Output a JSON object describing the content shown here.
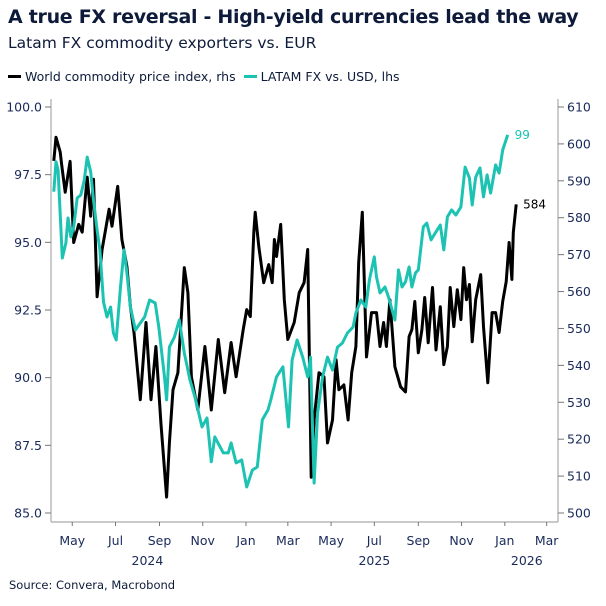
{
  "title": "A true FX reversal - High-yield currencies lead the way",
  "subtitle": "Latam FX commodity exporters vs. EUR",
  "source": "Source: Convera, Macrobond",
  "chart_data": {
    "type": "line",
    "title": "A true FX reversal - High-yield currencies lead the way",
    "subtitle": "Latam FX commodity exporters vs. EUR",
    "legend_position": "top-left",
    "grid": false,
    "xlim": [
      "2024-04-01",
      "2026-03-17"
    ],
    "x_ticks": [
      "May",
      "Jul",
      "Sep",
      "Nov",
      "Jan",
      "Mar",
      "May",
      "Jul",
      "Sep",
      "Nov",
      "Jan",
      "Mar"
    ],
    "x_tick_dates": [
      "2024-05-01",
      "2024-07-01",
      "2024-09-01",
      "2024-11-01",
      "2025-01-01",
      "2025-03-01",
      "2025-05-01",
      "2025-07-01",
      "2025-09-01",
      "2025-11-01",
      "2026-01-01",
      "2026-03-01"
    ],
    "x_years": [
      {
        "label": "2024",
        "date": "2024-08-15"
      },
      {
        "label": "2025",
        "date": "2025-07-01"
      },
      {
        "label": "2026",
        "date": "2026-02-01"
      }
    ],
    "y_left": {
      "lim": [
        85,
        100
      ],
      "ticks": [
        "85.0",
        "87.5",
        "90.0",
        "92.5",
        "95.0",
        "97.5",
        "100.0"
      ]
    },
    "y_right": {
      "lim": [
        500,
        610
      ],
      "ticks": [
        "500",
        "510",
        "520",
        "530",
        "540",
        "550",
        "560",
        "570",
        "580",
        "590",
        "600",
        "610"
      ]
    },
    "series": [
      {
        "name": "World commodity price index, rhs",
        "axis": "right",
        "color": "#000000",
        "end_label": "584",
        "points": [
          [
            "2024-04-05",
            595.4
          ],
          [
            "2024-04-08",
            601.8
          ],
          [
            "2024-04-14",
            597.8
          ],
          [
            "2024-04-16",
            594.5
          ],
          [
            "2024-04-21",
            586.9
          ],
          [
            "2024-04-28",
            595.3
          ],
          [
            "2024-05-03",
            573.3
          ],
          [
            "2024-05-10",
            578.2
          ],
          [
            "2024-05-15",
            576.1
          ],
          [
            "2024-05-22",
            591.0
          ],
          [
            "2024-05-27",
            580.4
          ],
          [
            "2024-05-31",
            590.4
          ],
          [
            "2024-06-05",
            558.6
          ],
          [
            "2024-06-12",
            571.4
          ],
          [
            "2024-06-17",
            576.8
          ],
          [
            "2024-06-22",
            582.3
          ],
          [
            "2024-06-26",
            577.7
          ],
          [
            "2024-07-04",
            588.5
          ],
          [
            "2024-07-10",
            574.1
          ],
          [
            "2024-07-17",
            566.8
          ],
          [
            "2024-07-22",
            555.9
          ],
          [
            "2024-07-27",
            548.9
          ],
          [
            "2024-08-05",
            530.7
          ],
          [
            "2024-08-13",
            551.6
          ],
          [
            "2024-08-20",
            530.7
          ],
          [
            "2024-08-27",
            545.1
          ],
          [
            "2024-09-03",
            524.4
          ],
          [
            "2024-09-11",
            504.3
          ],
          [
            "2024-09-15",
            519.0
          ],
          [
            "2024-09-20",
            533.4
          ],
          [
            "2024-09-27",
            538.0
          ],
          [
            "2024-10-06",
            566.5
          ],
          [
            "2024-10-11",
            559.7
          ],
          [
            "2024-10-16",
            536.9
          ],
          [
            "2024-10-25",
            527.9
          ],
          [
            "2024-11-04",
            545.1
          ],
          [
            "2024-11-13",
            527.9
          ],
          [
            "2024-11-23",
            547.0
          ],
          [
            "2024-12-02",
            532.6
          ],
          [
            "2024-12-11",
            546.2
          ],
          [
            "2024-12-18",
            536.9
          ],
          [
            "2024-12-28",
            549.7
          ],
          [
            "2025-01-02",
            555.1
          ],
          [
            "2025-01-07",
            553.2
          ],
          [
            "2025-01-12",
            576.0
          ],
          [
            "2025-01-14",
            581.5
          ],
          [
            "2025-01-19",
            572.2
          ],
          [
            "2025-01-26",
            562.4
          ],
          [
            "2025-02-02",
            567.3
          ],
          [
            "2025-02-07",
            562.4
          ],
          [
            "2025-02-10",
            574.1
          ],
          [
            "2025-02-13",
            569.5
          ],
          [
            "2025-02-19",
            578.2
          ],
          [
            "2025-02-24",
            557.8
          ],
          [
            "2025-03-01",
            547.0
          ],
          [
            "2025-03-10",
            551.6
          ],
          [
            "2025-03-17",
            559.7
          ],
          [
            "2025-03-24",
            562.4
          ],
          [
            "2025-03-29",
            571.4
          ],
          [
            "2025-04-03",
            509.7
          ],
          [
            "2025-04-07",
            525.2
          ],
          [
            "2025-04-14",
            538.0
          ],
          [
            "2025-04-21",
            536.9
          ],
          [
            "2025-04-26",
            519.0
          ],
          [
            "2025-05-03",
            525.2
          ],
          [
            "2025-05-08",
            541.5
          ],
          [
            "2025-05-12",
            533.4
          ],
          [
            "2025-05-19",
            534.7
          ],
          [
            "2025-05-25",
            525.2
          ],
          [
            "2025-05-30",
            538.0
          ],
          [
            "2025-06-05",
            545.1
          ],
          [
            "2025-06-09",
            567.9
          ],
          [
            "2025-06-14",
            581.5
          ],
          [
            "2025-06-20",
            542.3
          ],
          [
            "2025-06-27",
            554.3
          ],
          [
            "2025-07-04",
            554.3
          ],
          [
            "2025-07-09",
            545.1
          ],
          [
            "2025-07-14",
            551.6
          ],
          [
            "2025-07-18",
            545.1
          ],
          [
            "2025-07-23",
            557.8
          ],
          [
            "2025-07-30",
            539.6
          ],
          [
            "2025-08-07",
            534.2
          ],
          [
            "2025-08-14",
            532.8
          ],
          [
            "2025-08-19",
            547.8
          ],
          [
            "2025-08-23",
            549.7
          ],
          [
            "2025-08-27",
            557.3
          ],
          [
            "2025-09-01",
            543.4
          ],
          [
            "2025-09-06",
            549.7
          ],
          [
            "2025-09-10",
            558.4
          ],
          [
            "2025-09-15",
            546.1
          ],
          [
            "2025-09-21",
            561.1
          ],
          [
            "2025-09-26",
            544.2
          ],
          [
            "2025-10-02",
            555.9
          ],
          [
            "2025-10-07",
            540.2
          ],
          [
            "2025-10-12",
            545.1
          ],
          [
            "2025-10-16",
            561.1
          ],
          [
            "2025-10-21",
            550.5
          ],
          [
            "2025-10-26",
            560.5
          ],
          [
            "2025-10-31",
            552.4
          ],
          [
            "2025-11-04",
            566.5
          ],
          [
            "2025-11-08",
            557.8
          ],
          [
            "2025-11-12",
            561.9
          ],
          [
            "2025-11-16",
            546.4
          ],
          [
            "2025-11-21",
            557.8
          ],
          [
            "2025-11-28",
            564.6
          ],
          [
            "2025-12-02",
            550.5
          ],
          [
            "2025-12-08",
            535.3
          ],
          [
            "2025-12-14",
            554.3
          ],
          [
            "2025-12-19",
            554.3
          ],
          [
            "2025-12-24",
            548.9
          ],
          [
            "2025-12-29",
            557.3
          ],
          [
            "2026-01-03",
            562.7
          ],
          [
            "2026-01-07",
            573.3
          ],
          [
            "2026-01-11",
            563.3
          ],
          [
            "2026-01-13",
            576.0
          ],
          [
            "2026-01-17",
            583.6
          ]
        ]
      },
      {
        "name": "LATAM FX vs. USD, lhs",
        "axis": "left",
        "color": "#1cc3b2",
        "end_label": "99",
        "points": [
          [
            "2024-04-05",
            96.87
          ],
          [
            "2024-04-08",
            97.98
          ],
          [
            "2024-04-11",
            97.67
          ],
          [
            "2024-04-17",
            94.42
          ],
          [
            "2024-04-22",
            94.98
          ],
          [
            "2024-04-25",
            95.9
          ],
          [
            "2024-04-29",
            95.2
          ],
          [
            "2024-05-03",
            95.57
          ],
          [
            "2024-05-08",
            96.64
          ],
          [
            "2024-05-13",
            96.75
          ],
          [
            "2024-05-18",
            97.3
          ],
          [
            "2024-05-22",
            98.15
          ],
          [
            "2024-05-27",
            97.6
          ],
          [
            "2024-05-31",
            96.56
          ],
          [
            "2024-06-05",
            95.46
          ],
          [
            "2024-06-09",
            94.72
          ],
          [
            "2024-06-14",
            92.8
          ],
          [
            "2024-06-19",
            92.24
          ],
          [
            "2024-06-24",
            92.61
          ],
          [
            "2024-06-28",
            91.65
          ],
          [
            "2024-07-02",
            91.39
          ],
          [
            "2024-07-08",
            93.35
          ],
          [
            "2024-07-13",
            94.72
          ],
          [
            "2024-07-17",
            93.87
          ],
          [
            "2024-07-22",
            92.61
          ],
          [
            "2024-07-29",
            91.76
          ],
          [
            "2024-08-11",
            92.24
          ],
          [
            "2024-08-18",
            92.87
          ],
          [
            "2024-08-26",
            92.76
          ],
          [
            "2024-08-31",
            91.87
          ],
          [
            "2024-09-08",
            90.03
          ],
          [
            "2024-09-11",
            89.18
          ],
          [
            "2024-09-15",
            91.13
          ],
          [
            "2024-09-22",
            91.5
          ],
          [
            "2024-09-29",
            92.13
          ],
          [
            "2024-10-06",
            90.91
          ],
          [
            "2024-10-14",
            89.91
          ],
          [
            "2024-10-21",
            89.29
          ],
          [
            "2024-10-31",
            88.18
          ],
          [
            "2024-11-07",
            88.51
          ],
          [
            "2024-11-13",
            86.89
          ],
          [
            "2024-11-18",
            87.81
          ],
          [
            "2024-11-30",
            87.22
          ],
          [
            "2024-12-07",
            87.22
          ],
          [
            "2024-12-11",
            87.59
          ],
          [
            "2024-12-18",
            86.85
          ],
          [
            "2024-12-26",
            86.96
          ],
          [
            "2025-01-02",
            85.96
          ],
          [
            "2025-01-10",
            86.59
          ],
          [
            "2025-01-17",
            86.7
          ],
          [
            "2025-01-24",
            88.44
          ],
          [
            "2025-02-01",
            88.81
          ],
          [
            "2025-02-05",
            89.18
          ],
          [
            "2025-02-13",
            90.03
          ],
          [
            "2025-02-22",
            90.4
          ],
          [
            "2025-03-02",
            88.18
          ],
          [
            "2025-03-07",
            90.65
          ],
          [
            "2025-03-14",
            91.39
          ],
          [
            "2025-03-22",
            90.76
          ],
          [
            "2025-03-29",
            90.03
          ],
          [
            "2025-04-02",
            90.76
          ],
          [
            "2025-04-07",
            86.11
          ],
          [
            "2025-04-12",
            88.7
          ],
          [
            "2025-04-19",
            90.03
          ],
          [
            "2025-04-26",
            90.76
          ],
          [
            "2025-05-03",
            90.28
          ],
          [
            "2025-05-10",
            91.13
          ],
          [
            "2025-05-17",
            91.28
          ],
          [
            "2025-05-24",
            91.65
          ],
          [
            "2025-06-01",
            91.87
          ],
          [
            "2025-06-05",
            92.39
          ],
          [
            "2025-06-12",
            92.87
          ],
          [
            "2025-06-19",
            92.61
          ],
          [
            "2025-06-24",
            93.61
          ],
          [
            "2025-07-01",
            94.46
          ],
          [
            "2025-07-04",
            93.72
          ],
          [
            "2025-07-09",
            93.13
          ],
          [
            "2025-07-16",
            93.35
          ],
          [
            "2025-07-21",
            92.98
          ],
          [
            "2025-07-30",
            92.13
          ],
          [
            "2025-08-04",
            93.98
          ],
          [
            "2025-08-09",
            93.35
          ],
          [
            "2025-08-14",
            93.54
          ],
          [
            "2025-08-19",
            94.09
          ],
          [
            "2025-08-23",
            93.35
          ],
          [
            "2025-08-28",
            93.87
          ],
          [
            "2025-09-01",
            93.98
          ],
          [
            "2025-09-08",
            95.57
          ],
          [
            "2025-09-13",
            95.71
          ],
          [
            "2025-09-19",
            95.09
          ],
          [
            "2025-09-25",
            95.35
          ],
          [
            "2025-10-02",
            95.64
          ],
          [
            "2025-10-07",
            94.72
          ],
          [
            "2025-10-12",
            95.94
          ],
          [
            "2025-10-18",
            96.2
          ],
          [
            "2025-10-24",
            96.01
          ],
          [
            "2025-10-31",
            96.31
          ],
          [
            "2025-11-06",
            97.78
          ],
          [
            "2025-11-12",
            97.38
          ],
          [
            "2025-11-16",
            96.38
          ],
          [
            "2025-11-21",
            97.41
          ],
          [
            "2025-11-27",
            97.75
          ],
          [
            "2025-12-02",
            96.68
          ],
          [
            "2025-12-07",
            97.49
          ],
          [
            "2025-12-12",
            96.82
          ],
          [
            "2025-12-19",
            97.86
          ],
          [
            "2025-12-24",
            97.56
          ],
          [
            "2025-12-29",
            98.41
          ],
          [
            "2026-01-05",
            98.97
          ]
        ]
      }
    ]
  }
}
